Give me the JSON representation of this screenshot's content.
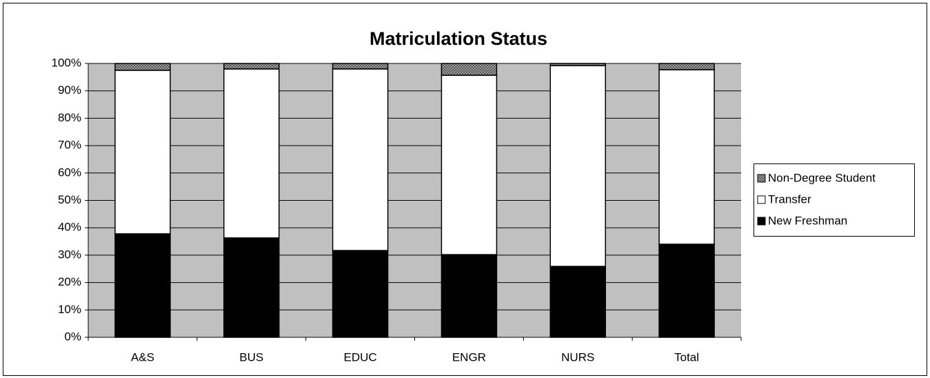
{
  "chart_data": {
    "type": "stacked_bar_percent",
    "title": "Matriculation Status",
    "categories": [
      "A&S",
      "BUS",
      "EDUC",
      "ENGR",
      "NURS",
      "Total"
    ],
    "series": [
      {
        "name": "New Freshman",
        "color": "#000000",
        "values": [
          37.8,
          36.3,
          31.7,
          30.2,
          25.9,
          34
        ]
      },
      {
        "name": "Transfer",
        "color": "#ffffff",
        "values": [
          59.7,
          61.7,
          66.3,
          65.5,
          73.3,
          63.7
        ]
      },
      {
        "name": "Non-Degree Student",
        "color": "#a0a0a0",
        "values": [
          2.5,
          2,
          2,
          4.3,
          0.8,
          2.3
        ]
      }
    ],
    "ylim": [
      0,
      100
    ],
    "yticks": [
      {
        "value": 0,
        "label": "0%"
      },
      {
        "value": 10,
        "label": "10%"
      },
      {
        "value": 20,
        "label": "20%"
      },
      {
        "value": 30,
        "label": "30%"
      },
      {
        "value": 40,
        "label": "40%"
      },
      {
        "value": 50,
        "label": "50%"
      },
      {
        "value": 60,
        "label": "60%"
      },
      {
        "value": 70,
        "label": "70%"
      },
      {
        "value": 80,
        "label": "80%"
      },
      {
        "value": 90,
        "label": "90%"
      },
      {
        "value": 100,
        "label": "100%"
      }
    ],
    "grid": true,
    "plot_background": "#c0c0c0",
    "legend": "right"
  }
}
